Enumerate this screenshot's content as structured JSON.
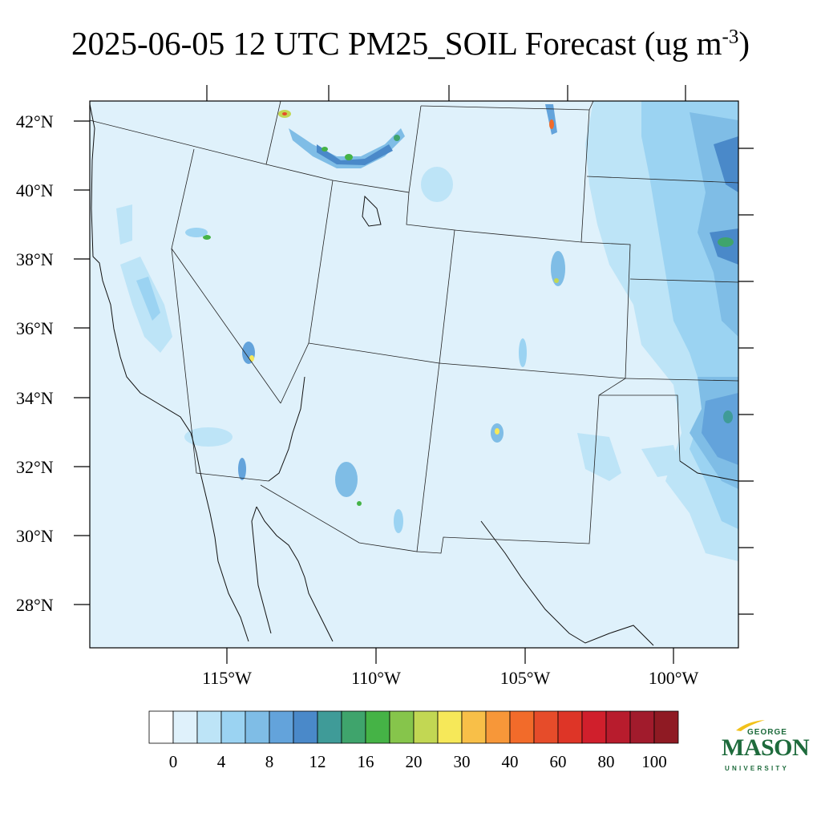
{
  "title": {
    "main": "2025-06-05 12 UTC PM25_SOIL Forecast (ug m",
    "superscript": "-3",
    "close": ")"
  },
  "map": {
    "lat_ticks": [
      "42°N",
      "40°N",
      "38°N",
      "36°N",
      "34°N",
      "32°N",
      "30°N",
      "28°N"
    ],
    "lon_ticks": [
      "115°W",
      "110°W",
      "105°W",
      "100°W"
    ],
    "background_color": "#dff1fb"
  },
  "colorbar": {
    "colors": [
      "#ffffff",
      "#dff1fb",
      "#bde4f7",
      "#9bd3f2",
      "#7fbde6",
      "#63a3db",
      "#4a89c9",
      "#3f9b98",
      "#3fa46c",
      "#45b346",
      "#86c54b",
      "#c2d753",
      "#f6e859",
      "#f8bf48",
      "#f79739",
      "#f26b2a",
      "#e64c2a",
      "#de3527",
      "#d01f2c",
      "#b81c2d",
      "#a11b2c",
      "#8f1a23"
    ],
    "labels": [
      "0",
      "4",
      "8",
      "12",
      "16",
      "20",
      "30",
      "40",
      "60",
      "80",
      "100"
    ]
  },
  "logo": {
    "george": "GEORGE",
    "mason": "MASON",
    "university": "UNIVERSITY",
    "color": "#1e6b3c",
    "accent_color": "#f2c21b"
  }
}
